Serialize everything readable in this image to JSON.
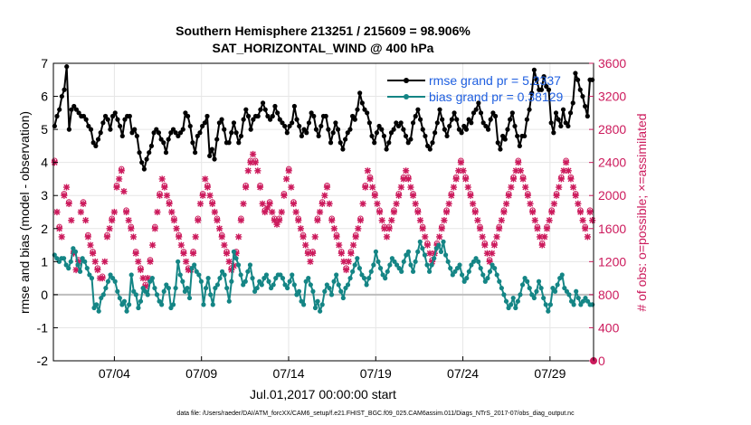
{
  "title_line1": "Southern Hemisphere 213251 / 215609 = 98.906%",
  "title_line2": "SAT_HORIZONTAL_WIND @ 400 hPa",
  "footer": "data file: /Users/raeder/DAI/ATM_forcXX/CAM6_setup/f.e21.FHIST_BGC.f09_025.CAM6assim.011/Diags_NTrS_2017-07/obs_diag_output.nc",
  "colors": {
    "rmse": "#000000",
    "bias": "#148585",
    "obs": "#cc1a5c",
    "zero": "#bdbdbd",
    "grid": "#e6e6e6"
  },
  "chart_data": {
    "type": "line",
    "xlabel": "Jul.01,2017 00:00:00 start",
    "ylabel_left": "rmse and bias (model - observation)",
    "ylabel_right": "# of obs: o=possible; ×=assimilated",
    "x_ticks": [
      "07/04",
      "07/09",
      "07/14",
      "07/19",
      "07/24",
      "07/29"
    ],
    "x_tick_days": [
      3.5,
      8.5,
      13.5,
      18.5,
      23.5,
      28.5
    ],
    "x_range_days": [
      0,
      31
    ],
    "ylim_left": [
      -2,
      7
    ],
    "yticks_left": [
      "-2",
      "-1",
      "0",
      "1",
      "2",
      "3",
      "4",
      "5",
      "6",
      "7"
    ],
    "ylim_right": [
      0,
      3600
    ],
    "yticks_right": [
      "0",
      "400",
      "800",
      "1200",
      "1600",
      "2000",
      "2400",
      "2800",
      "3200",
      "3600"
    ],
    "legend": [
      {
        "label": "rmse grand pr = 5.2337",
        "series": "rmse"
      },
      {
        "label": "bias grand pr = 0.38129",
        "series": "bias"
      }
    ],
    "series": [
      {
        "name": "rmse",
        "axis": "left",
        "values": [
          5.1,
          5.4,
          5.6,
          6.0,
          6.2,
          6.9,
          5.0,
          5.6,
          5.7,
          5.6,
          5.5,
          5.4,
          5.4,
          5.3,
          5.1,
          5.0,
          4.6,
          4.5,
          4.7,
          4.9,
          5.2,
          5.4,
          5.3,
          5.0,
          5.4,
          5.5,
          5.3,
          5.1,
          4.8,
          5.3,
          5.4,
          5.4,
          4.9,
          5.0,
          4.8,
          4.3,
          4.0,
          3.8,
          4.1,
          4.3,
          4.5,
          4.9,
          5.0,
          4.9,
          4.7,
          4.6,
          4.3,
          4.7,
          4.9,
          5.0,
          4.9,
          4.8,
          4.9,
          5.0,
          5.5,
          5.4,
          5.1,
          4.6,
          4.3,
          4.8,
          4.9,
          5.1,
          5.2,
          5.4,
          4.2,
          4.4,
          4.1,
          4.7,
          5.2,
          5.3,
          5.0,
          4.6,
          4.6,
          4.9,
          5.2,
          4.9,
          4.6,
          4.8,
          5.3,
          5.6,
          5.4,
          5.0,
          5.3,
          5.4,
          5.4,
          5.6,
          5.8,
          5.6,
          5.4,
          5.3,
          5.4,
          5.7,
          5.5,
          5.3,
          5.2,
          5.1,
          4.9,
          5.1,
          5.2,
          5.7,
          5.3,
          5.1,
          4.8,
          5.0,
          4.9,
          5.2,
          5.5,
          5.4,
          5.0,
          4.8,
          5.1,
          5.4,
          5.4,
          5.0,
          4.6,
          4.9,
          5.2,
          5.0,
          4.6,
          4.4,
          4.7,
          4.9,
          5.0,
          5.4,
          5.3,
          5.6,
          6.1,
          5.8,
          5.6,
          5.5,
          5.2,
          4.8,
          4.6,
          4.9,
          5.1,
          5.0,
          4.8,
          4.4,
          4.6,
          4.9,
          5.0,
          5.2,
          5.1,
          5.2,
          5.0,
          4.8,
          4.6,
          4.7,
          5.2,
          5.4,
          5.6,
          5.3,
          5.0,
          4.8,
          4.5,
          4.4,
          4.6,
          4.9,
          5.2,
          5.6,
          5.3,
          5.0,
          4.8,
          5.1,
          5.3,
          5.5,
          5.3,
          5.0,
          4.9,
          5.1,
          5.0,
          5.3,
          5.2,
          5.5,
          5.6,
          5.8,
          5.5,
          5.2,
          5.1,
          5.0,
          5.3,
          5.5,
          5.4,
          4.6,
          4.4,
          4.8,
          4.7,
          5.0,
          5.3,
          5.5,
          5.1,
          4.8,
          4.5,
          4.8,
          4.8,
          5.3,
          5.6,
          6.1,
          6.8,
          6.5,
          6.2,
          6.2,
          6.6,
          6.3,
          6.2,
          5.2,
          4.9,
          5.5,
          5.3,
          5.1,
          5.6,
          5.2,
          5.1,
          5.5,
          5.8,
          6.7,
          6.5,
          6.2,
          6.0,
          5.7,
          5.4,
          6.5,
          6.5
        ]
      },
      {
        "name": "bias",
        "axis": "left",
        "values": [
          1.2,
          1.1,
          1.0,
          1.1,
          1.1,
          0.9,
          0.8,
          1.0,
          1.4,
          1.3,
          0.9,
          0.7,
          1.1,
          1.0,
          0.8,
          0.6,
          0.5,
          -0.4,
          -0.3,
          -0.5,
          -0.1,
          0.0,
          0.2,
          0.4,
          0.6,
          0.5,
          0.4,
          0.1,
          -0.1,
          -0.3,
          -0.2,
          -0.5,
          -0.3,
          0.6,
          0.1,
          0.0,
          -0.4,
          -0.2,
          0.2,
          0.1,
          0.0,
          0.4,
          0.5,
          0.2,
          0.0,
          -0.2,
          -0.3,
          0.1,
          0.3,
          0.2,
          -0.4,
          -0.3,
          0.2,
          1.0,
          0.6,
          0.4,
          0.1,
          0.2,
          -0.1,
          0.8,
          0.9,
          0.7,
          0.6,
          0.4,
          -0.3,
          0.2,
          0.5,
          0.0,
          -0.3,
          0.2,
          0.3,
          0.5,
          0.7,
          0.6,
          0.2,
          -0.2,
          0.4,
          1.3,
          1.1,
          0.9,
          0.6,
          0.3,
          0.4,
          0.7,
          0.9,
          0.5,
          0.1,
          0.2,
          0.4,
          0.3,
          0.5,
          0.6,
          0.4,
          0.2,
          0.3,
          0.5,
          0.6,
          0.6,
          0.5,
          0.3,
          0.2,
          0.4,
          0.6,
          0.3,
          0.0,
          0.1,
          -0.2,
          -0.3,
          0.4,
          0.5,
          0.3,
          0.1,
          -0.4,
          -0.2,
          -0.5,
          -0.3,
          0.1,
          0.3,
          0.2,
          0.0,
          0.4,
          0.6,
          0.3,
          0.1,
          -0.1,
          0.2,
          0.3,
          0.5,
          0.7,
          0.9,
          1.1,
          0.8,
          0.6,
          0.5,
          0.3,
          0.5,
          0.7,
          0.9,
          1.3,
          1.0,
          0.8,
          0.6,
          0.5,
          0.7,
          0.9,
          1.1,
          1.0,
          0.9,
          0.8,
          0.7,
          1.0,
          1.2,
          1.3,
          0.9,
          0.7,
          1.0,
          1.3,
          1.6,
          1.4,
          1.2,
          0.9,
          0.7,
          0.9,
          1.1,
          1.4,
          1.5,
          1.3,
          1.6,
          1.2,
          1.0,
          0.8,
          0.6,
          0.7,
          0.8,
          0.9,
          0.6,
          0.4,
          0.5,
          0.7,
          0.9,
          1.0,
          1.1,
          1.0,
          0.8,
          0.6,
          0.4,
          0.5,
          0.7,
          0.9,
          0.8,
          0.6,
          0.4,
          0.2,
          0.0,
          -0.2,
          -0.4,
          -0.3,
          -0.1,
          -0.4,
          -0.2,
          0.0,
          0.3,
          0.5,
          0.4,
          0.2,
          0.0,
          -0.1,
          0.1,
          0.4,
          0.2,
          -0.1,
          -0.3,
          -0.5,
          -0.3,
          0.2,
          0.1,
          0.3,
          0.5,
          0.6,
          0.2,
          0.1,
          0.0,
          -0.2,
          -0.3,
          0.1,
          -0.1,
          -0.3,
          -0.2,
          -0.1,
          -0.2,
          -0.3,
          -0.3
        ]
      },
      {
        "name": "obs_assimilated",
        "axis": "right",
        "values": [
          2400,
          1800,
          1600,
          1500,
          2000,
          2100,
          1900,
          1700,
          1300,
          1100,
          1200,
          1800,
          1900,
          1700,
          1500,
          1400,
          1300,
          1200,
          1100,
          1000,
          1000,
          1200,
          1500,
          1600,
          1700,
          1800,
          2100,
          2200,
          2300,
          2050,
          1800,
          1700,
          1600,
          1500,
          1300,
          1200,
          1100,
          1000,
          900,
          1000,
          1200,
          1400,
          1600,
          1800,
          2000,
          2200,
          2100,
          2000,
          1900,
          1800,
          1700,
          1600,
          1500,
          1400,
          1300,
          1200,
          1100,
          1100,
          1300,
          1500,
          1700,
          1900,
          2000,
          2200,
          2100,
          2000,
          1900,
          1800,
          1700,
          1600,
          1500,
          1400,
          1300,
          1200,
          1100,
          1150,
          1300,
          1500,
          1700,
          1900,
          2100,
          2300,
          2400,
          2500,
          2400,
          2300,
          2100,
          1900,
          1800,
          1850,
          1900,
          1800,
          1700,
          1650,
          1700,
          1800,
          2000,
          2200,
          2300,
          2100,
          1900,
          1800,
          1700,
          1600,
          1500,
          1400,
          1300,
          1200,
          1300,
          1500,
          1700,
          1800,
          1900,
          2000,
          2100,
          1900,
          1700,
          1600,
          1500,
          1400,
          1300,
          1200,
          1100,
          1200,
          1300,
          1400,
          1500,
          1600,
          1700,
          1900,
          2100,
          2300,
          2200,
          2100,
          2000,
          1900,
          1800,
          1700,
          1600,
          1500,
          1600,
          1700,
          1800,
          1900,
          2000,
          2100,
          2200,
          2300,
          2200,
          2100,
          2000,
          1900,
          1800,
          1700,
          1600,
          1500,
          1400,
          1300,
          1200,
          1300,
          1400,
          1500,
          1600,
          1700,
          1800,
          1900,
          2000,
          2100,
          2200,
          2300,
          2400,
          2300,
          2200,
          2100,
          2000,
          1900,
          1800,
          1700,
          1600,
          1500,
          1400,
          1300,
          1200,
          1300,
          1400,
          1500,
          1600,
          1700,
          1800,
          1900,
          2000,
          2100,
          2200,
          2300,
          2400,
          2300,
          2200,
          2100,
          2000,
          1900,
          1800,
          1700,
          1600,
          1500,
          1400,
          1500,
          1600,
          1700,
          1800,
          1900,
          2000,
          2100,
          2200,
          2300,
          2400,
          2300,
          2200,
          2100,
          2000,
          1900,
          1800,
          1700,
          1600,
          1500,
          1800,
          1700
        ]
      },
      {
        "name": "obs_possible",
        "axis": "right",
        "values": [
          2420,
          1820,
          1620,
          1520,
          2020,
          2120,
          1920,
          1720,
          1320,
          1120,
          1220,
          1820,
          1920,
          1720,
          1520,
          1420,
          1320,
          1220,
          1120,
          1020,
          1020,
          1220,
          1520,
          1620,
          1720,
          1820,
          2120,
          2220,
          2320,
          2070,
          1820,
          1720,
          1620,
          1520,
          1320,
          1220,
          1120,
          1020,
          920,
          1020,
          1220,
          1420,
          1620,
          1820,
          2020,
          2220,
          2120,
          2020,
          1920,
          1820,
          1720,
          1620,
          1520,
          1420,
          1320,
          1220,
          1120,
          1120,
          1320,
          1520,
          1720,
          1920,
          2020,
          2220,
          2120,
          2020,
          1920,
          1820,
          1720,
          1620,
          1520,
          1420,
          1320,
          1220,
          1120,
          1170,
          1320,
          1520,
          1720,
          1920,
          2120,
          2320,
          2420,
          2520,
          2420,
          2320,
          2120,
          1920,
          1820,
          1870,
          1920,
          1820,
          1720,
          1670,
          1720,
          1820,
          2020,
          2220,
          2320,
          2120,
          1920,
          1820,
          1720,
          1620,
          1520,
          1420,
          1320,
          1220,
          1320,
          1520,
          1720,
          1820,
          1920,
          2020,
          2120,
          1920,
          1720,
          1620,
          1520,
          1420,
          1320,
          1220,
          1120,
          1220,
          1320,
          1420,
          1520,
          1620,
          1720,
          1920,
          2120,
          2320,
          2220,
          2120,
          2020,
          1920,
          1820,
          1720,
          1620,
          1520,
          1620,
          1720,
          1820,
          1920,
          2020,
          2120,
          2220,
          2320,
          2220,
          2120,
          2020,
          1920,
          1820,
          1720,
          1620,
          1520,
          1420,
          1320,
          1220,
          1320,
          1420,
          1520,
          1620,
          1720,
          1820,
          1920,
          2020,
          2120,
          2220,
          2320,
          2420,
          2320,
          2220,
          2120,
          2020,
          1920,
          1820,
          1720,
          1620,
          1520,
          1420,
          1320,
          1220,
          1320,
          1420,
          1520,
          1620,
          1720,
          1820,
          1920,
          2020,
          2120,
          2220,
          2320,
          2420,
          2320,
          2220,
          2120,
          2020,
          1920,
          1820,
          1720,
          1620,
          1520,
          1420,
          1520,
          1620,
          1720,
          1820,
          1920,
          2020,
          2120,
          2220,
          2320,
          2420,
          2320,
          2220,
          2120,
          2020,
          1920,
          1820,
          1720,
          1620,
          1520,
          1820,
          1720
        ]
      }
    ]
  }
}
